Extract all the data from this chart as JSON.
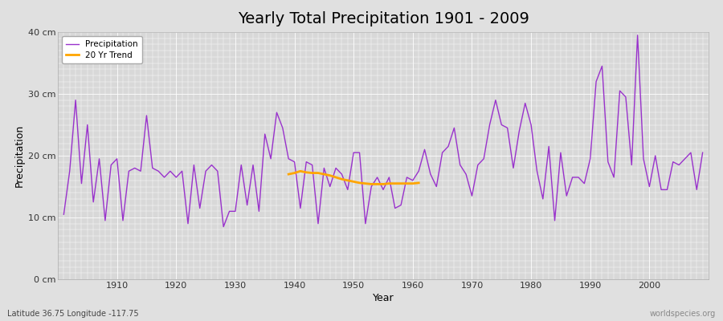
{
  "title": "Yearly Total Precipitation 1901 - 2009",
  "xlabel": "Year",
  "ylabel": "Precipitation",
  "subtitle": "Latitude 36.75 Longitude -117.75",
  "watermark": "worldspecies.org",
  "years": [
    1901,
    1902,
    1903,
    1904,
    1905,
    1906,
    1907,
    1908,
    1909,
    1910,
    1911,
    1912,
    1913,
    1914,
    1915,
    1916,
    1917,
    1918,
    1919,
    1920,
    1921,
    1922,
    1923,
    1924,
    1925,
    1926,
    1927,
    1928,
    1929,
    1930,
    1931,
    1932,
    1933,
    1934,
    1935,
    1936,
    1937,
    1938,
    1939,
    1940,
    1941,
    1942,
    1943,
    1944,
    1945,
    1946,
    1947,
    1948,
    1949,
    1950,
    1951,
    1952,
    1953,
    1954,
    1955,
    1956,
    1957,
    1958,
    1959,
    1960,
    1961,
    1962,
    1963,
    1964,
    1965,
    1966,
    1967,
    1968,
    1969,
    1970,
    1971,
    1972,
    1973,
    1974,
    1975,
    1976,
    1977,
    1978,
    1979,
    1980,
    1981,
    1982,
    1983,
    1984,
    1985,
    1986,
    1987,
    1988,
    1989,
    1990,
    1991,
    1992,
    1993,
    1994,
    1995,
    1996,
    1997,
    1998,
    1999,
    2000,
    2001,
    2002,
    2003,
    2004,
    2005,
    2006,
    2007,
    2008,
    2009
  ],
  "precip": [
    10.5,
    17.5,
    29.0,
    15.5,
    25.0,
    12.5,
    19.5,
    9.5,
    18.5,
    19.5,
    9.5,
    17.5,
    18.0,
    17.5,
    26.5,
    18.0,
    17.5,
    16.5,
    17.5,
    16.5,
    17.5,
    9.0,
    18.5,
    11.5,
    17.5,
    18.5,
    17.5,
    8.5,
    11.0,
    11.0,
    18.5,
    12.0,
    18.5,
    11.0,
    23.5,
    19.5,
    27.0,
    24.5,
    19.5,
    19.0,
    11.5,
    19.0,
    18.5,
    9.0,
    18.0,
    15.0,
    18.0,
    17.0,
    14.5,
    20.5,
    20.5,
    9.0,
    15.0,
    16.5,
    14.5,
    16.5,
    11.5,
    12.0,
    16.5,
    16.0,
    17.5,
    21.0,
    17.0,
    15.0,
    20.5,
    21.5,
    24.5,
    18.5,
    17.0,
    13.5,
    18.5,
    19.5,
    25.0,
    29.0,
    25.0,
    24.5,
    18.0,
    24.0,
    28.5,
    25.0,
    17.5,
    13.0,
    21.5,
    9.5,
    20.5,
    13.5,
    16.5,
    16.5,
    15.5,
    19.5,
    32.0,
    34.5,
    19.0,
    16.5,
    30.5,
    29.5,
    18.5,
    39.5,
    19.5,
    15.0,
    20.0,
    14.5,
    14.5,
    19.0,
    18.5,
    19.5,
    20.5,
    14.5,
    20.5
  ],
  "trend_years": [
    1939,
    1940,
    1941,
    1942,
    1943,
    1944,
    1945,
    1946,
    1947,
    1948,
    1949,
    1950,
    1951,
    1952,
    1953,
    1954,
    1955,
    1956,
    1957,
    1958,
    1959,
    1960,
    1961
  ],
  "trend_values": [
    17.0,
    17.2,
    17.5,
    17.3,
    17.2,
    17.2,
    17.0,
    16.8,
    16.5,
    16.2,
    16.0,
    15.8,
    15.6,
    15.5,
    15.4,
    15.4,
    15.4,
    15.5,
    15.5,
    15.5,
    15.5,
    15.5,
    15.6
  ],
  "precip_color": "#9932CC",
  "trend_color": "#FFA500",
  "bg_color": "#E0E0E0",
  "plot_bg_color": "#D8D8D8",
  "ylim": [
    0,
    40
  ],
  "xlim": [
    1900,
    2010
  ],
  "yticks": [
    0,
    10,
    20,
    30,
    40
  ],
  "ytick_labels": [
    "0 cm",
    "10 cm",
    "20 cm",
    "30 cm",
    "40 cm"
  ],
  "xticks": [
    1910,
    1920,
    1930,
    1940,
    1950,
    1960,
    1970,
    1980,
    1990,
    2000
  ],
  "grid_color": "#FFFFFF",
  "title_fontsize": 14,
  "label_fontsize": 9,
  "tick_fontsize": 8
}
